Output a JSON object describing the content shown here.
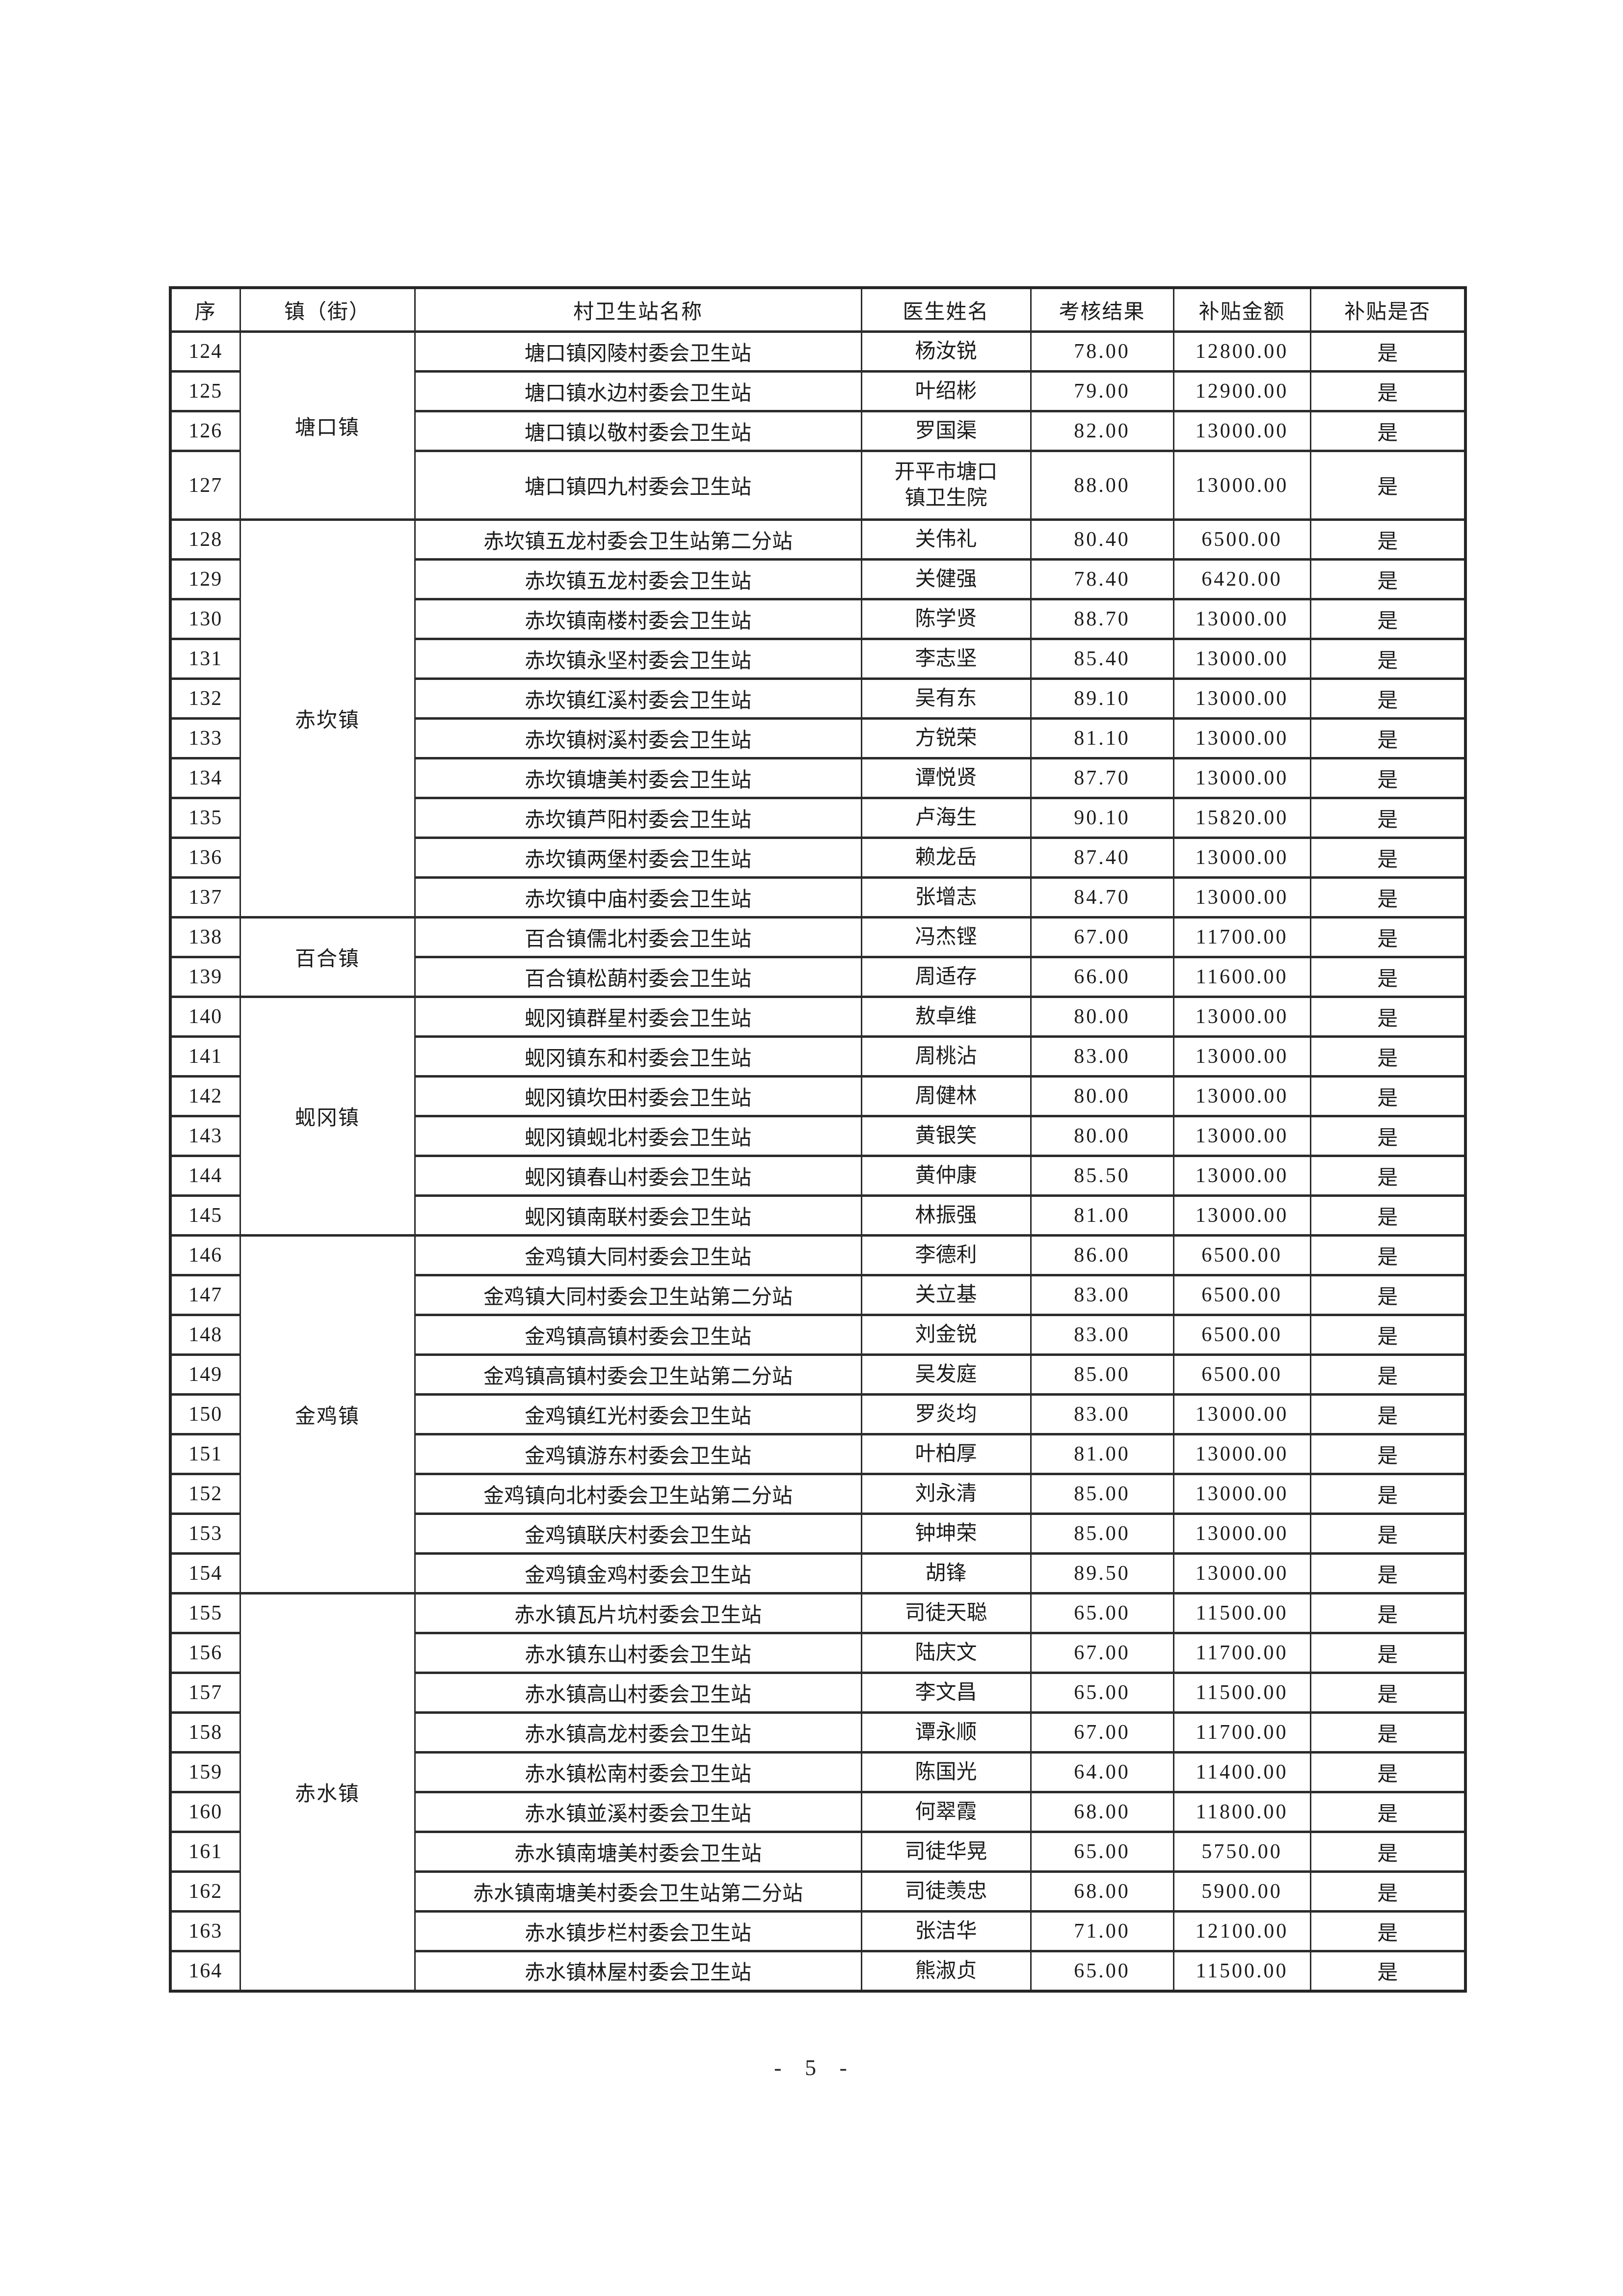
{
  "page": {
    "footer": "- 5 -",
    "page_number": "5"
  },
  "table": {
    "headers": [
      "序",
      "镇（街）",
      "村卫生站名称",
      "医生姓名",
      "考核结果",
      "补贴金额",
      "补贴是否"
    ],
    "town_groups": [
      {
        "town": "塘口镇",
        "rows": 4
      },
      {
        "town": "赤坎镇",
        "rows": 10
      },
      {
        "town": "百合镇",
        "rows": 2
      },
      {
        "town": "蚬冈镇",
        "rows": 6
      },
      {
        "town": "金鸡镇",
        "rows": 9
      },
      {
        "town": "赤水镇",
        "rows": 10
      }
    ],
    "rows": [
      {
        "no": "124",
        "town": "塘口镇",
        "station": "塘口镇冈陵村委会卫生站",
        "doctor": "杨汝锐",
        "score": "78.00",
        "amount": "12800.00",
        "granted": "是"
      },
      {
        "no": "125",
        "town": "塘口镇",
        "station": "塘口镇水边村委会卫生站",
        "doctor": "叶绍彬",
        "score": "79.00",
        "amount": "12900.00",
        "granted": "是"
      },
      {
        "no": "126",
        "town": "塘口镇",
        "station": "塘口镇以敬村委会卫生站",
        "doctor": "罗国渠",
        "score": "82.00",
        "amount": "13000.00",
        "granted": "是"
      },
      {
        "no": "127",
        "town": "塘口镇",
        "station": "塘口镇四九村委会卫生站",
        "doctor": "开平市塘口\n镇卫生院",
        "score": "88.00",
        "amount": "13000.00",
        "granted": "是"
      },
      {
        "no": "128",
        "town": "赤坎镇",
        "station": "赤坎镇五龙村委会卫生站第二分站",
        "doctor": "关伟礼",
        "score": "80.40",
        "amount": "6500.00",
        "granted": "是"
      },
      {
        "no": "129",
        "town": "赤坎镇",
        "station": "赤坎镇五龙村委会卫生站",
        "doctor": "关健强",
        "score": "78.40",
        "amount": "6420.00",
        "granted": "是"
      },
      {
        "no": "130",
        "town": "赤坎镇",
        "station": "赤坎镇南楼村委会卫生站",
        "doctor": "陈学贤",
        "score": "88.70",
        "amount": "13000.00",
        "granted": "是"
      },
      {
        "no": "131",
        "town": "赤坎镇",
        "station": "赤坎镇永坚村委会卫生站",
        "doctor": "李志坚",
        "score": "85.40",
        "amount": "13000.00",
        "granted": "是"
      },
      {
        "no": "132",
        "town": "赤坎镇",
        "station": "赤坎镇红溪村委会卫生站",
        "doctor": "吴有东",
        "score": "89.10",
        "amount": "13000.00",
        "granted": "是"
      },
      {
        "no": "133",
        "town": "赤坎镇",
        "station": "赤坎镇树溪村委会卫生站",
        "doctor": "方锐荣",
        "score": "81.10",
        "amount": "13000.00",
        "granted": "是"
      },
      {
        "no": "134",
        "town": "赤坎镇",
        "station": "赤坎镇塘美村委会卫生站",
        "doctor": "谭悦贤",
        "score": "87.70",
        "amount": "13000.00",
        "granted": "是"
      },
      {
        "no": "135",
        "town": "赤坎镇",
        "station": "赤坎镇芦阳村委会卫生站",
        "doctor": "卢海生",
        "score": "90.10",
        "amount": "15820.00",
        "granted": "是"
      },
      {
        "no": "136",
        "town": "赤坎镇",
        "station": "赤坎镇两堡村委会卫生站",
        "doctor": "赖龙岳",
        "score": "87.40",
        "amount": "13000.00",
        "granted": "是"
      },
      {
        "no": "137",
        "town": "赤坎镇",
        "station": "赤坎镇中庙村委会卫生站",
        "doctor": "张增志",
        "score": "84.70",
        "amount": "13000.00",
        "granted": "是"
      },
      {
        "no": "138",
        "town": "百合镇",
        "station": "百合镇儒北村委会卫生站",
        "doctor": "冯杰铿",
        "score": "67.00",
        "amount": "11700.00",
        "granted": "是"
      },
      {
        "no": "139",
        "town": "百合镇",
        "station": "百合镇松蓢村委会卫生站",
        "doctor": "周适存",
        "score": "66.00",
        "amount": "11600.00",
        "granted": "是"
      },
      {
        "no": "140",
        "town": "蚬冈镇",
        "station": "蚬冈镇群星村委会卫生站",
        "doctor": "敖卓维",
        "score": "80.00",
        "amount": "13000.00",
        "granted": "是"
      },
      {
        "no": "141",
        "town": "蚬冈镇",
        "station": "蚬冈镇东和村委会卫生站",
        "doctor": "周桃沾",
        "score": "83.00",
        "amount": "13000.00",
        "granted": "是"
      },
      {
        "no": "142",
        "town": "蚬冈镇",
        "station": "蚬冈镇坎田村委会卫生站",
        "doctor": "周健林",
        "score": "80.00",
        "amount": "13000.00",
        "granted": "是"
      },
      {
        "no": "143",
        "town": "蚬冈镇",
        "station": "蚬冈镇蚬北村委会卫生站",
        "doctor": "黄银笑",
        "score": "80.00",
        "amount": "13000.00",
        "granted": "是"
      },
      {
        "no": "144",
        "town": "蚬冈镇",
        "station": "蚬冈镇春山村委会卫生站",
        "doctor": "黄仲康",
        "score": "85.50",
        "amount": "13000.00",
        "granted": "是"
      },
      {
        "no": "145",
        "town": "蚬冈镇",
        "station": "蚬冈镇南联村委会卫生站",
        "doctor": "林振强",
        "score": "81.00",
        "amount": "13000.00",
        "granted": "是"
      },
      {
        "no": "146",
        "town": "金鸡镇",
        "station": "金鸡镇大同村委会卫生站",
        "doctor": "李德利",
        "score": "86.00",
        "amount": "6500.00",
        "granted": "是"
      },
      {
        "no": "147",
        "town": "金鸡镇",
        "station": "金鸡镇大同村委会卫生站第二分站",
        "doctor": "关立基",
        "score": "83.00",
        "amount": "6500.00",
        "granted": "是"
      },
      {
        "no": "148",
        "town": "金鸡镇",
        "station": "金鸡镇高镇村委会卫生站",
        "doctor": "刘金锐",
        "score": "83.00",
        "amount": "6500.00",
        "granted": "是"
      },
      {
        "no": "149",
        "town": "金鸡镇",
        "station": "金鸡镇高镇村委会卫生站第二分站",
        "doctor": "吴发庭",
        "score": "85.00",
        "amount": "6500.00",
        "granted": "是"
      },
      {
        "no": "150",
        "town": "金鸡镇",
        "station": "金鸡镇红光村委会卫生站",
        "doctor": "罗炎均",
        "score": "83.00",
        "amount": "13000.00",
        "granted": "是"
      },
      {
        "no": "151",
        "town": "金鸡镇",
        "station": "金鸡镇游东村委会卫生站",
        "doctor": "叶柏厚",
        "score": "81.00",
        "amount": "13000.00",
        "granted": "是"
      },
      {
        "no": "152",
        "town": "金鸡镇",
        "station": "金鸡镇向北村委会卫生站第二分站",
        "doctor": "刘永清",
        "score": "85.00",
        "amount": "13000.00",
        "granted": "是"
      },
      {
        "no": "153",
        "town": "金鸡镇",
        "station": "金鸡镇联庆村委会卫生站",
        "doctor": "钟坤荣",
        "score": "85.00",
        "amount": "13000.00",
        "granted": "是"
      },
      {
        "no": "154",
        "town": "金鸡镇",
        "station": "金鸡镇金鸡村委会卫生站",
        "doctor": "胡锋",
        "score": "89.50",
        "amount": "13000.00",
        "granted": "是"
      },
      {
        "no": "155",
        "town": "赤水镇",
        "station": "赤水镇瓦片坑村委会卫生站",
        "doctor": "司徒天聪",
        "score": "65.00",
        "amount": "11500.00",
        "granted": "是"
      },
      {
        "no": "156",
        "town": "赤水镇",
        "station": "赤水镇东山村委会卫生站",
        "doctor": "陆庆文",
        "score": "67.00",
        "amount": "11700.00",
        "granted": "是"
      },
      {
        "no": "157",
        "town": "赤水镇",
        "station": "赤水镇高山村委会卫生站",
        "doctor": "李文昌",
        "score": "65.00",
        "amount": "11500.00",
        "granted": "是"
      },
      {
        "no": "158",
        "town": "赤水镇",
        "station": "赤水镇高龙村委会卫生站",
        "doctor": "谭永顺",
        "score": "67.00",
        "amount": "11700.00",
        "granted": "是"
      },
      {
        "no": "159",
        "town": "赤水镇",
        "station": "赤水镇松南村委会卫生站",
        "doctor": "陈国光",
        "score": "64.00",
        "amount": "11400.00",
        "granted": "是"
      },
      {
        "no": "160",
        "town": "赤水镇",
        "station": "赤水镇並溪村委会卫生站",
        "doctor": "何翠霞",
        "score": "68.00",
        "amount": "11800.00",
        "granted": "是"
      },
      {
        "no": "161",
        "town": "赤水镇",
        "station": "赤水镇南塘美村委会卫生站",
        "doctor": "司徒华晃",
        "score": "65.00",
        "amount": "5750.00",
        "granted": "是"
      },
      {
        "no": "162",
        "town": "赤水镇",
        "station": "赤水镇南塘美村委会卫生站第二分站",
        "doctor": "司徒羡忠",
        "score": "68.00",
        "amount": "5900.00",
        "granted": "是"
      },
      {
        "no": "163",
        "town": "赤水镇",
        "station": "赤水镇步栏村委会卫生站",
        "doctor": "张洁华",
        "score": "71.00",
        "amount": "12100.00",
        "granted": "是"
      },
      {
        "no": "164",
        "town": "赤水镇",
        "station": "赤水镇林屋村委会卫生站",
        "doctor": "熊淑贞",
        "score": "65.00",
        "amount": "11500.00",
        "granted": "是"
      }
    ]
  }
}
